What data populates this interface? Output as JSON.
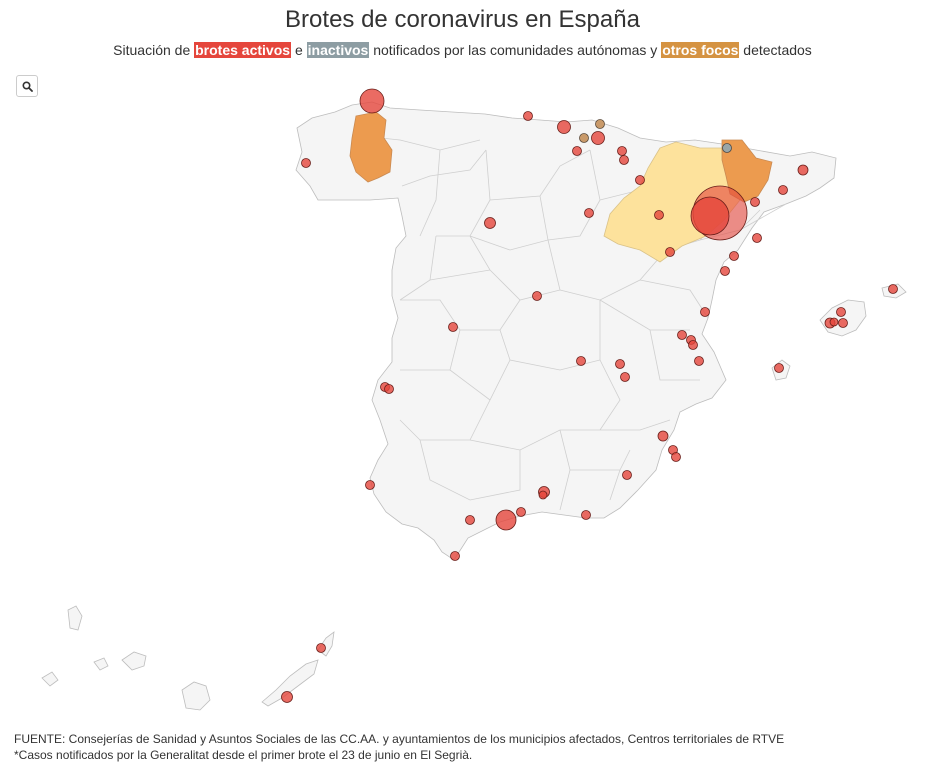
{
  "title": "Brotes de coronavirus en España",
  "subtitle": {
    "part1": "Situación de ",
    "active": "brotes activos",
    "part2": " e ",
    "inactive": "inactivos",
    "part3": " notificados por las comunidades autónomas y ",
    "other": "otros focos",
    "part4": " detectados"
  },
  "colors": {
    "active": "#e5463c",
    "inactive": "#8d9da3",
    "other": "#d59342",
    "region_highlight_orange": "#ec9b4f",
    "region_highlight_yellow": "#fde29c",
    "land": "#f5f5f5"
  },
  "search_icon": "magnifier-icon",
  "footer": {
    "line1": "FUENTE: Consejerías de Sanidad y Asuntos Sociales de las CC.AA. y ayuntamientos de los municipios afectados, Centros territoriales de RTVE",
    "line2": "*Casos notificados por la Generalitat desde el primer brote el 23 de junio en El Segrià."
  }
}
